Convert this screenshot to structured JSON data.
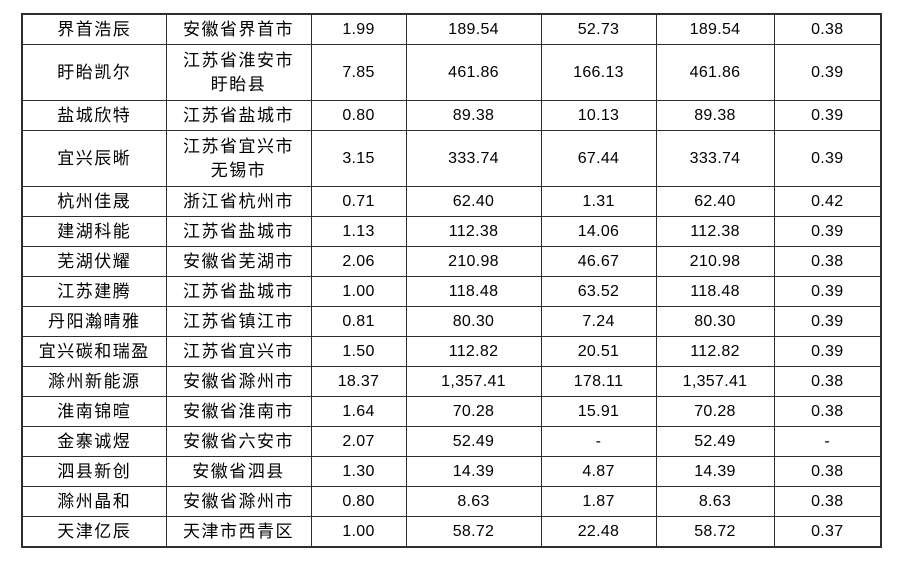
{
  "colors": {
    "background": "#ffffff",
    "border": "#2e2e2e",
    "text": "#000000"
  },
  "table": {
    "description": "borderless-header financial table continuation (no header row visible)",
    "rows": [
      {
        "cells": [
          "界首浩辰",
          "安徽省界首市",
          "1.99",
          "189.54",
          "52.73",
          "189.54",
          "0.38"
        ]
      },
      {
        "cells": [
          "盱眙凯尔",
          "江苏省淮安市\n盱眙县",
          "7.85",
          "461.86",
          "166.13",
          "461.86",
          "0.39"
        ]
      },
      {
        "cells": [
          "盐城欣特",
          "江苏省盐城市",
          "0.80",
          "89.38",
          "10.13",
          "89.38",
          "0.39"
        ]
      },
      {
        "cells": [
          "宜兴辰晰",
          "江苏省宜兴市\n无锡市",
          "3.15",
          "333.74",
          "67.44",
          "333.74",
          "0.39"
        ]
      },
      {
        "cells": [
          "杭州佳晟",
          "浙江省杭州市",
          "0.71",
          "62.40",
          "1.31",
          "62.40",
          "0.42"
        ]
      },
      {
        "cells": [
          "建湖科能",
          "江苏省盐城市",
          "1.13",
          "112.38",
          "14.06",
          "112.38",
          "0.39"
        ]
      },
      {
        "cells": [
          "芜湖伏耀",
          "安徽省芜湖市",
          "2.06",
          "210.98",
          "46.67",
          "210.98",
          "0.38"
        ]
      },
      {
        "cells": [
          "江苏建腾",
          "江苏省盐城市",
          "1.00",
          "118.48",
          "63.52",
          "118.48",
          "0.39"
        ]
      },
      {
        "cells": [
          "丹阳瀚晴雅",
          "江苏省镇江市",
          "0.81",
          "80.30",
          "7.24",
          "80.30",
          "0.39"
        ]
      },
      {
        "cells": [
          "宜兴碳和瑞盈",
          "江苏省宜兴市",
          "1.50",
          "112.82",
          "20.51",
          "112.82",
          "0.39"
        ]
      },
      {
        "cells": [
          "滁州新能源",
          "安徽省滁州市",
          "18.37",
          "1,357.41",
          "178.11",
          "1,357.41",
          "0.38"
        ]
      },
      {
        "cells": [
          "淮南锦暄",
          "安徽省淮南市",
          "1.64",
          "70.28",
          "15.91",
          "70.28",
          "0.38"
        ]
      },
      {
        "cells": [
          "金寨诚煜",
          "安徽省六安市",
          "2.07",
          "52.49",
          "-",
          "52.49",
          "-"
        ]
      },
      {
        "cells": [
          "泗县新创",
          "安徽省泗县",
          "1.30",
          "14.39",
          "4.87",
          "14.39",
          "0.38"
        ]
      },
      {
        "cells": [
          "滁州晶和",
          "安徽省滁州市",
          "0.80",
          "8.63",
          "1.87",
          "8.63",
          "0.38"
        ]
      },
      {
        "cells": [
          "天津亿辰",
          "天津市西青区",
          "1.00",
          "58.72",
          "22.48",
          "58.72",
          "0.37"
        ]
      }
    ]
  }
}
